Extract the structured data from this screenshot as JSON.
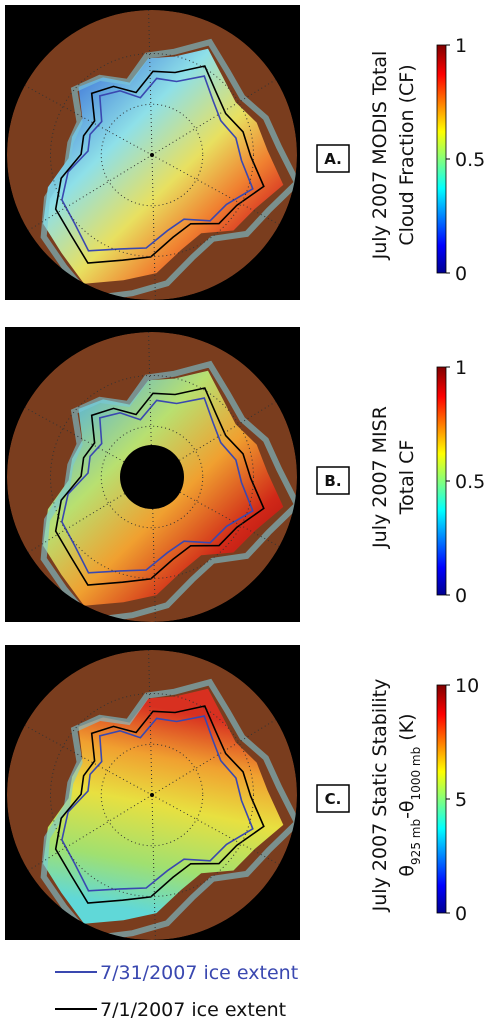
{
  "panels": [
    {
      "label": "A.",
      "title": [
        "July 2007 MODIS Total",
        "Cloud Fraction (CF)"
      ],
      "colorbar": {
        "lim": [
          0,
          1
        ],
        "ticks": [
          0,
          0.5,
          1
        ]
      }
    },
    {
      "label": "B.",
      "title": [
        "July 2007 MISR",
        "Total  CF"
      ],
      "colorbar": {
        "lim": [
          0,
          1
        ],
        "ticks": [
          0,
          0.5,
          1
        ]
      }
    },
    {
      "label": "C.",
      "title": [
        "July 2007 Static Stability"
      ],
      "title_parts": [
        "θ",
        "925 mb",
        "-θ",
        "1000 mb",
        " (K)"
      ],
      "colorbar": {
        "lim": [
          0,
          10
        ],
        "ticks": [
          0,
          5,
          10
        ]
      }
    }
  ],
  "legend": {
    "items": [
      {
        "label": "7/31/2007 ice extent",
        "color": "#3a48b0"
      },
      {
        "label": "7/1/2007 ice extent",
        "color": "#000000"
      }
    ]
  }
}
